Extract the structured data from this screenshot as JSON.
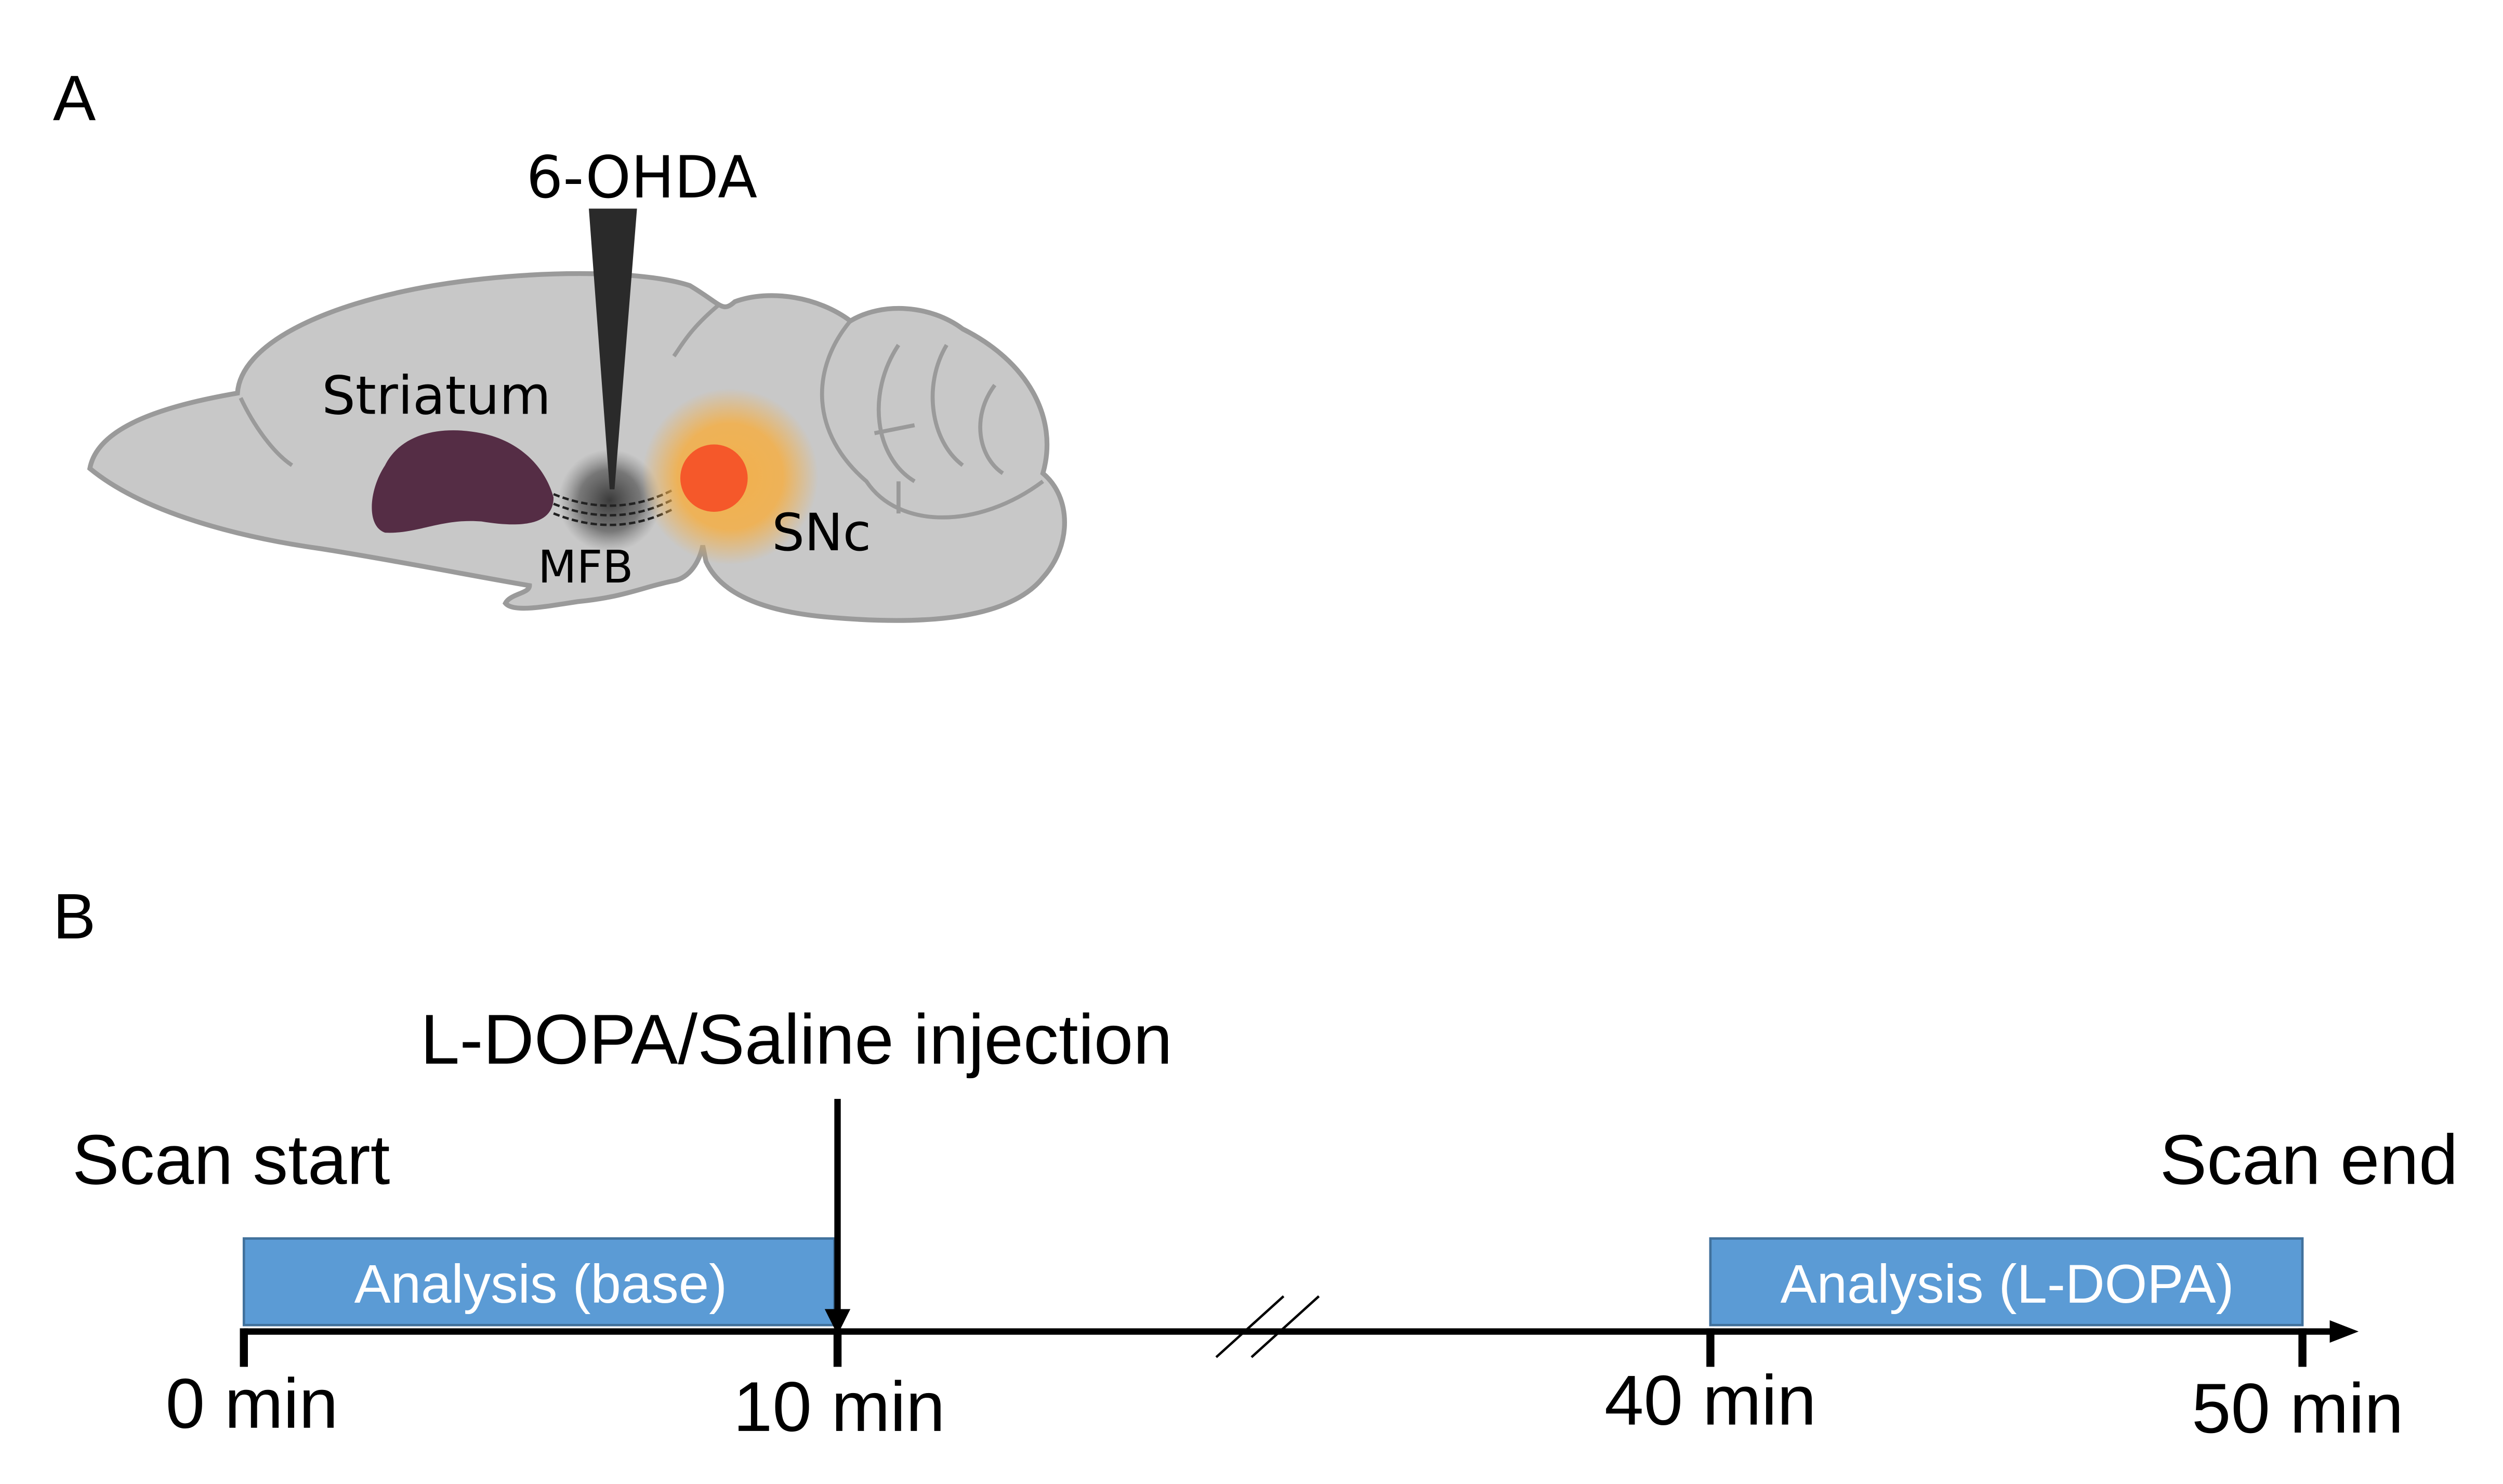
{
  "panel_a": {
    "label": "A",
    "injection_label": "6-OHDA",
    "regions": {
      "striatum": "Striatum",
      "mfb": "MFB",
      "snc": "SNc"
    },
    "colors": {
      "brain": "#c8c8c8",
      "brain_outline": "#9a9a9a",
      "striatum": "#552d45",
      "snc_glow": "#f2b04c",
      "snc_core": "#f5582a",
      "needle": "#2a2a2a"
    }
  },
  "panel_b": {
    "label": "B",
    "injection_event": "L-DOPA/Saline injection",
    "scan_start": "Scan start",
    "scan_end": "Scan end",
    "analysis_windows": [
      {
        "label": "Analysis (base)",
        "start_min": 0,
        "end_min": 10
      },
      {
        "label": "Analysis (L-DOPA)",
        "start_min": 40,
        "end_min": 50
      }
    ],
    "ticks": [
      "0 min",
      "10 min",
      "40 min",
      "50 min"
    ],
    "box_color": "#5b9bd5",
    "box_outline": "#41719c"
  }
}
